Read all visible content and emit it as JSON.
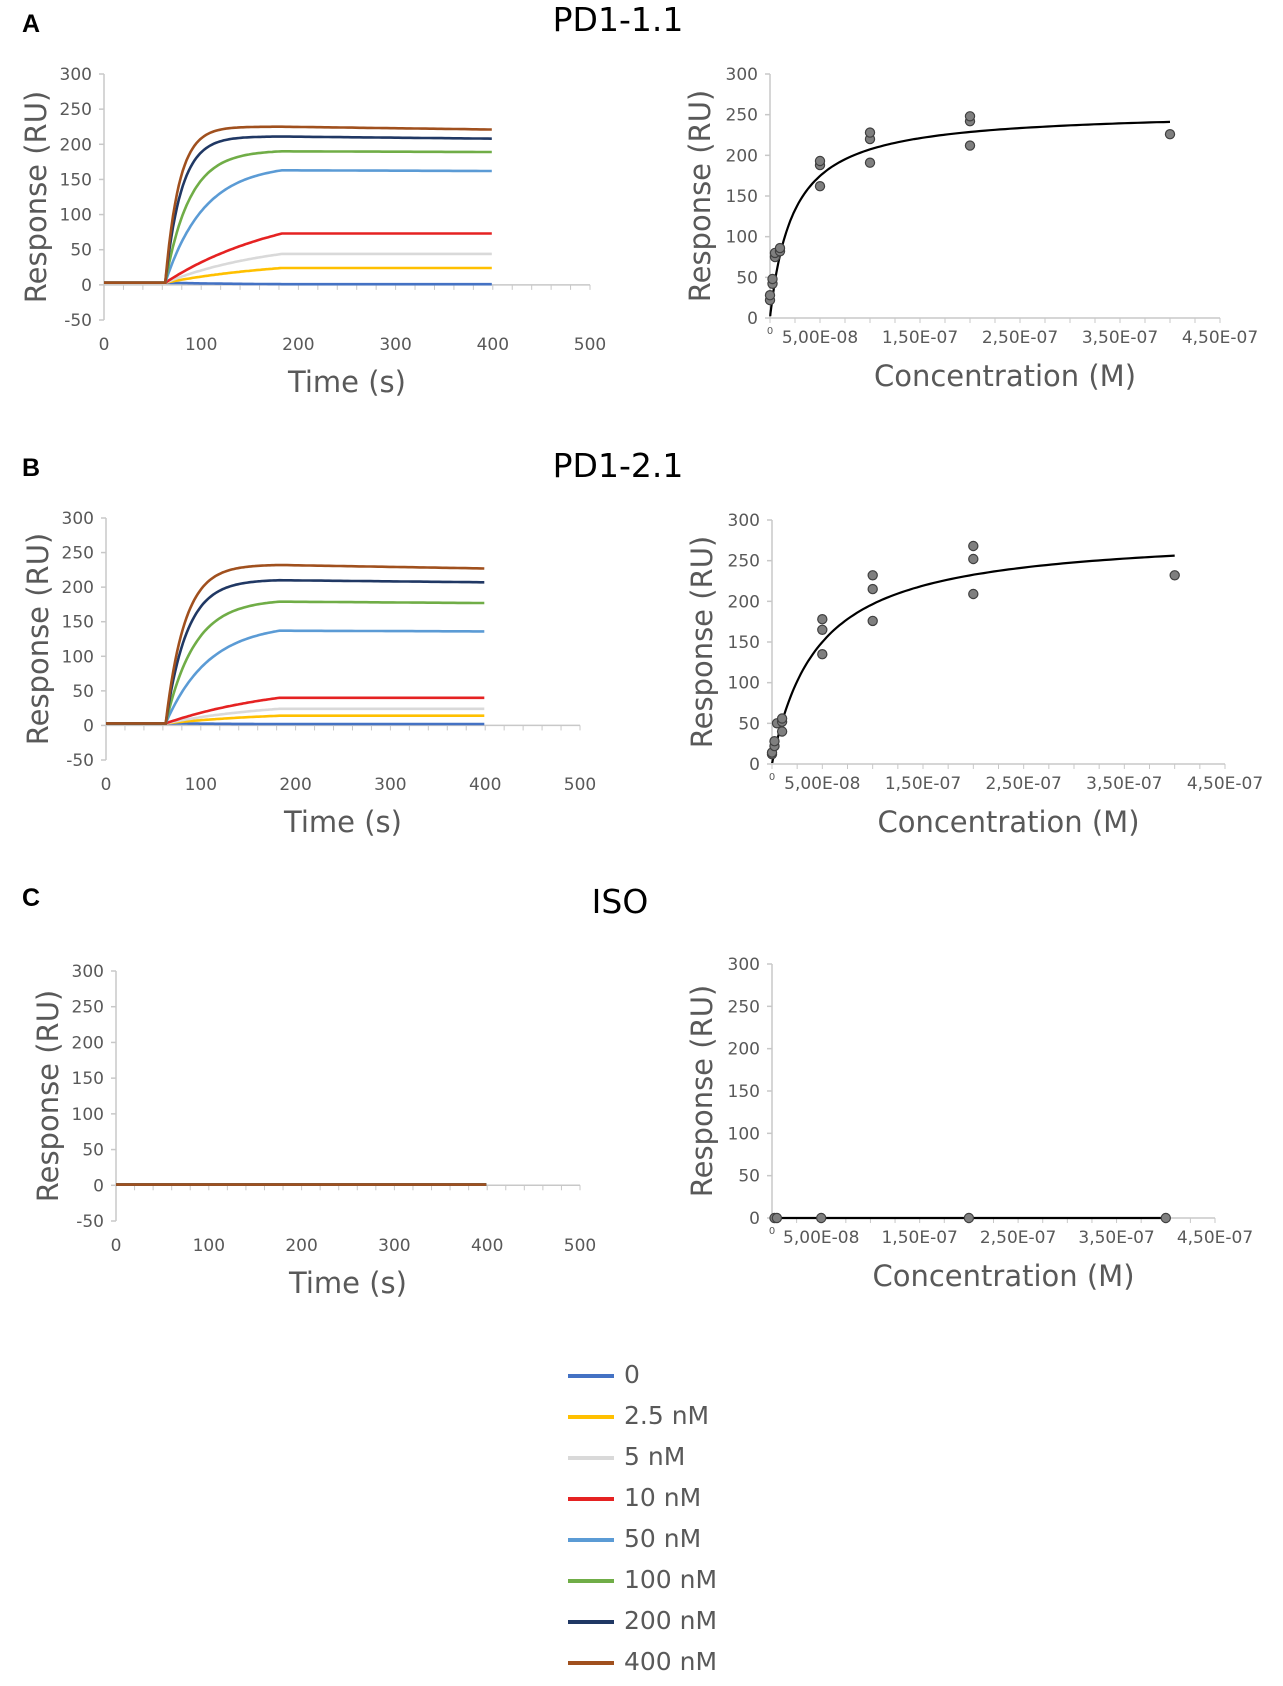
{
  "panels": [
    {
      "letter": "A",
      "title": "PD1-1.1"
    },
    {
      "letter": "B",
      "title": "PD1-2.1"
    },
    {
      "letter": "C",
      "title": "ISO"
    }
  ],
  "legend": [
    {
      "label": "0",
      "color": "#4472C4"
    },
    {
      "label": "2.5 nM",
      "color": "#FFC000"
    },
    {
      "label": "5 nM",
      "color": "#D9D9D9"
    },
    {
      "label": "10 nM",
      "color": "#E52222"
    },
    {
      "label": "50 nM",
      "color": "#5B9BD5"
    },
    {
      "label": "100 nM",
      "color": "#70AD47"
    },
    {
      "label": "200 nM",
      "color": "#203864"
    },
    {
      "label": "400 nM",
      "color": "#A0501E"
    }
  ],
  "chart_data": [
    {
      "id": "A-sensorgram",
      "type": "line",
      "xlabel": "Time (s)",
      "ylabel": "Response (RU)",
      "xlim": [
        0,
        500
      ],
      "ylim": [
        -50,
        300
      ],
      "xticks": [
        "0",
        "100",
        "200",
        "300",
        "400",
        "500"
      ],
      "yticks": [
        "-50",
        "0",
        "50",
        "100",
        "150",
        "200",
        "250",
        "300"
      ],
      "baseline": 3,
      "inject_start": 63,
      "inject_end": 183,
      "end": 400,
      "series": [
        {
          "name": "0",
          "plateau": 1,
          "final": 1,
          "k": 0.01
        },
        {
          "name": "2.5 nM",
          "plateau": 24,
          "final": 24,
          "k": 0.008
        },
        {
          "name": "5 nM",
          "plateau": 44,
          "final": 44,
          "k": 0.009
        },
        {
          "name": "10 nM",
          "plateau": 73,
          "final": 73,
          "k": 0.008
        },
        {
          "name": "50 nM",
          "plateau": 163,
          "final": 162,
          "k": 0.025
        },
        {
          "name": "100 nM",
          "plateau": 190,
          "final": 189,
          "k": 0.04
        },
        {
          "name": "200 nM",
          "plateau": 211,
          "final": 208,
          "k": 0.06
        },
        {
          "name": "400 nM",
          "plateau": 225,
          "final": 221,
          "k": 0.07
        }
      ]
    },
    {
      "id": "A-steady-state",
      "type": "scatter",
      "xlabel": "Concentration (M)",
      "ylabel": "Response (RU)",
      "xlim": [
        0,
        4.5e-07
      ],
      "ylim": [
        0,
        300
      ],
      "xticks": [
        "0",
        "5,00E-08",
        "1,50E-07",
        "2,50E-07",
        "3,50E-07",
        "4,50E-07"
      ],
      "yticks": [
        "0",
        "50",
        "100",
        "150",
        "200",
        "250",
        "300"
      ],
      "points": [
        [
          0,
          22
        ],
        [
          0,
          28
        ],
        [
          2.5e-09,
          42
        ],
        [
          2.5e-09,
          48
        ],
        [
          5e-09,
          75
        ],
        [
          5e-09,
          80
        ],
        [
          1e-08,
          82
        ],
        [
          1e-08,
          86
        ],
        [
          5e-08,
          162
        ],
        [
          5e-08,
          188
        ],
        [
          5e-08,
          193
        ],
        [
          1e-07,
          191
        ],
        [
          1e-07,
          220
        ],
        [
          1e-07,
          228
        ],
        [
          2e-07,
          212
        ],
        [
          2e-07,
          242
        ],
        [
          2e-07,
          248
        ],
        [
          4e-07,
          226
        ]
      ],
      "fit": {
        "rmax": 255,
        "kd": 2.3e-08,
        "c0": 2e-10,
        "c1": 4e-07
      }
    },
    {
      "id": "B-sensorgram",
      "type": "line",
      "xlabel": "Time (s)",
      "ylabel": "Response (RU)",
      "xlim": [
        0,
        500
      ],
      "ylim": [
        -50,
        300
      ],
      "xticks": [
        "0",
        "100",
        "200",
        "300",
        "400",
        "500"
      ],
      "yticks": [
        "-50",
        "0",
        "50",
        "100",
        "150",
        "200",
        "250",
        "300"
      ],
      "baseline": 3,
      "inject_start": 63,
      "inject_end": 183,
      "end": 400,
      "series": [
        {
          "name": "0",
          "plateau": 2,
          "final": 2,
          "k": 0.01
        },
        {
          "name": "2.5 nM",
          "plateau": 14,
          "final": 14,
          "k": 0.008
        },
        {
          "name": "5 nM",
          "plateau": 24,
          "final": 24,
          "k": 0.009
        },
        {
          "name": "10 nM",
          "plateau": 40,
          "final": 40,
          "k": 0.008
        },
        {
          "name": "50 nM",
          "plateau": 137,
          "final": 136,
          "k": 0.022
        },
        {
          "name": "100 nM",
          "plateau": 179,
          "final": 177,
          "k": 0.033
        },
        {
          "name": "200 nM",
          "plateau": 210,
          "final": 207,
          "k": 0.045
        },
        {
          "name": "400 nM",
          "plateau": 232,
          "final": 227,
          "k": 0.05
        }
      ]
    },
    {
      "id": "B-steady-state",
      "type": "scatter",
      "xlabel": "Concentration (M)",
      "ylabel": "Response (RU)",
      "xlim": [
        0,
        4.5e-07
      ],
      "ylim": [
        0,
        300
      ],
      "xticks": [
        "0",
        "5,00E-08",
        "1,50E-07",
        "2,50E-07",
        "3,50E-07",
        "4,50E-07"
      ],
      "yticks": [
        "0",
        "50",
        "100",
        "150",
        "200",
        "250",
        "300"
      ],
      "points": [
        [
          0,
          12
        ],
        [
          0,
          14
        ],
        [
          2.5e-09,
          22
        ],
        [
          2.5e-09,
          28
        ],
        [
          5e-09,
          50
        ],
        [
          1e-08,
          40
        ],
        [
          1e-08,
          52
        ],
        [
          1e-08,
          56
        ],
        [
          5e-08,
          135
        ],
        [
          5e-08,
          165
        ],
        [
          5e-08,
          178
        ],
        [
          1e-07,
          176
        ],
        [
          1e-07,
          215
        ],
        [
          1e-07,
          232
        ],
        [
          2e-07,
          209
        ],
        [
          2e-07,
          252
        ],
        [
          2e-07,
          268
        ],
        [
          4e-07,
          232
        ]
      ],
      "fit": {
        "rmax": 285,
        "kd": 4.5e-08,
        "c0": 2e-10,
        "c1": 4e-07
      }
    },
    {
      "id": "C-sensorgram",
      "type": "line",
      "xlabel": "Time (s)",
      "ylabel": "Response (RU)",
      "xlim": [
        0,
        500
      ],
      "ylim": [
        -50,
        300
      ],
      "xticks": [
        "0",
        "100",
        "200",
        "300",
        "400",
        "500"
      ],
      "yticks": [
        "-50",
        "0",
        "50",
        "100",
        "150",
        "200",
        "250",
        "300"
      ],
      "baseline": 1,
      "inject_start": 63,
      "inject_end": 183,
      "end": 400,
      "series": [
        {
          "name": "0",
          "plateau": 1,
          "final": 1,
          "k": 0.01
        },
        {
          "name": "2.5 nM",
          "plateau": 1,
          "final": 1,
          "k": 0.01
        },
        {
          "name": "5 nM",
          "plateau": 1,
          "final": 1,
          "k": 0.01
        },
        {
          "name": "10 nM",
          "plateau": 1,
          "final": 1,
          "k": 0.01
        },
        {
          "name": "50 nM",
          "plateau": 1,
          "final": 1,
          "k": 0.01
        },
        {
          "name": "100 nM",
          "plateau": 1,
          "final": 1,
          "k": 0.01
        },
        {
          "name": "200 nM",
          "plateau": 1,
          "final": 1,
          "k": 0.01
        },
        {
          "name": "400 nM",
          "plateau": 1,
          "final": 1,
          "k": 0.01
        }
      ]
    },
    {
      "id": "C-steady-state",
      "type": "scatter",
      "xlabel": "Concentration (M)",
      "ylabel": "Response (RU)",
      "xlim": [
        0,
        4.5e-07
      ],
      "ylim": [
        0,
        300
      ],
      "xticks": [
        "0",
        "5,00E-08",
        "1,50E-07",
        "2,50E-07",
        "3,50E-07",
        "4,50E-07"
      ],
      "yticks": [
        "0",
        "50",
        "100",
        "150",
        "200",
        "250",
        "300"
      ],
      "points": [
        [
          2.5e-09,
          0
        ],
        [
          5e-09,
          0
        ],
        [
          5e-08,
          0
        ],
        [
          2e-07,
          0
        ],
        [
          4e-07,
          0
        ]
      ],
      "fit": {
        "rmax": 0,
        "kd": 1e-08,
        "c0": 2.5e-09,
        "c1": 4e-07
      }
    }
  ]
}
